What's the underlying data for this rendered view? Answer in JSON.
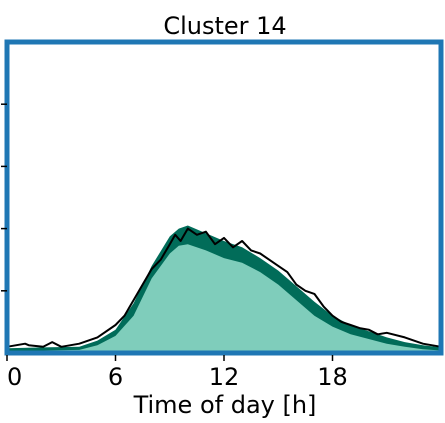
{
  "chart_data": {
    "type": "area",
    "title": "Cluster 14",
    "xlabel": "Time of day [h]",
    "ylabel": "",
    "xlim": [
      0,
      24
    ],
    "ylim": [
      0,
      1.0
    ],
    "x_ticks": [
      0,
      6,
      12,
      18
    ],
    "x_tick_labels": [
      "0",
      "6",
      "12",
      "18"
    ],
    "y_ticks": [
      0.2,
      0.4,
      0.6,
      0.8
    ],
    "grid": false,
    "frame_color": "#1f77b4",
    "series": [
      {
        "role": "lower band",
        "color": "#7fcdbb",
        "x": [
          0,
          2,
          4,
          5,
          6,
          7,
          8,
          9,
          9.5,
          10,
          11,
          12,
          13,
          14,
          15,
          16,
          17,
          18,
          19,
          20,
          21,
          22,
          23,
          24
        ],
        "values": [
          0.005,
          0.008,
          0.01,
          0.025,
          0.055,
          0.12,
          0.24,
          0.32,
          0.345,
          0.35,
          0.33,
          0.305,
          0.29,
          0.26,
          0.22,
          0.17,
          0.12,
          0.085,
          0.06,
          0.045,
          0.03,
          0.02,
          0.012,
          0.008
        ]
      },
      {
        "role": "upper band",
        "color": "#016c59",
        "x": [
          0,
          2,
          4,
          5,
          6,
          7,
          8,
          9,
          9.5,
          10,
          11,
          12,
          13,
          14,
          15,
          16,
          17,
          18,
          19,
          20,
          21,
          22,
          23,
          24
        ],
        "values": [
          0.015,
          0.018,
          0.02,
          0.04,
          0.075,
          0.16,
          0.28,
          0.375,
          0.4,
          0.41,
          0.385,
          0.36,
          0.34,
          0.305,
          0.265,
          0.215,
          0.165,
          0.12,
          0.09,
          0.07,
          0.05,
          0.035,
          0.025,
          0.018
        ]
      },
      {
        "role": "outline",
        "color": "#000000",
        "x": [
          0,
          1,
          1.2,
          2,
          2.5,
          3,
          4,
          5,
          6,
          6.5,
          7,
          7.5,
          8,
          8.5,
          9,
          9.3,
          9.6,
          10,
          10.5,
          11,
          11.5,
          12,
          12.5,
          13,
          13.5,
          14,
          14.5,
          15,
          15.5,
          16,
          16.5,
          17,
          17.5,
          18,
          18.5,
          19,
          19.5,
          20,
          20.5,
          21,
          22,
          23,
          24
        ],
        "values": [
          0.02,
          0.03,
          0.025,
          0.02,
          0.035,
          0.02,
          0.03,
          0.05,
          0.09,
          0.12,
          0.17,
          0.22,
          0.27,
          0.3,
          0.35,
          0.38,
          0.36,
          0.4,
          0.38,
          0.39,
          0.35,
          0.37,
          0.34,
          0.36,
          0.33,
          0.32,
          0.3,
          0.28,
          0.26,
          0.22,
          0.2,
          0.19,
          0.15,
          0.12,
          0.1,
          0.09,
          0.08,
          0.075,
          0.06,
          0.065,
          0.05,
          0.03,
          0.02
        ]
      }
    ]
  }
}
